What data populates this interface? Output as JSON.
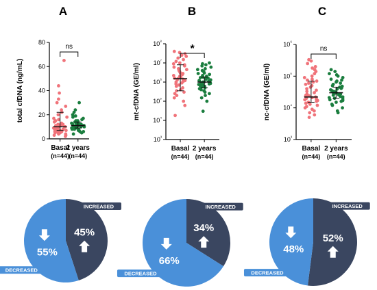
{
  "panels": [
    {
      "letter": "A",
      "ylabel": "total cfDNA  (ng/mL)",
      "sig": "ns"
    },
    {
      "letter": "B",
      "ylabel": "mt-cfDNA (GE/ml)",
      "sig": "*"
    },
    {
      "letter": "C",
      "ylabel": "nc-cfDNA (GE/ml)",
      "sig": "ns"
    }
  ],
  "groups": [
    {
      "label": "Basal",
      "n": "(n=44)"
    },
    {
      "label": "2 years",
      "n": "(n=44)"
    }
  ],
  "colors": {
    "basal": "#f0737a",
    "two_years": "#1a7d3e",
    "increased": "#3a4660",
    "decreased": "#4a90d9"
  },
  "chart_data": [
    {
      "type": "scatter",
      "title": "A",
      "ylabel": "total cfDNA  (ng/mL)",
      "categories": [
        "Basal\n(n=44)",
        "2 years\n(n=44)"
      ],
      "ylim": [
        0,
        80
      ],
      "yticks": [
        0,
        20,
        40,
        60,
        80
      ],
      "yscale": "linear",
      "series": [
        {
          "name": "Basal",
          "median": 10,
          "iqr": [
            7,
            22
          ],
          "values": [
            2,
            3,
            3,
            4,
            4,
            5,
            5,
            5,
            6,
            6,
            6,
            7,
            7,
            7,
            7,
            8,
            8,
            8,
            9,
            9,
            9,
            10,
            10,
            10,
            10,
            11,
            11,
            12,
            12,
            13,
            14,
            15,
            16,
            17,
            18,
            20,
            22,
            24,
            27,
            30,
            33,
            38,
            44,
            65
          ]
        },
        {
          "name": "2 years",
          "median": 11,
          "iqr": [
            9,
            14
          ],
          "values": [
            4,
            5,
            6,
            6,
            7,
            7,
            8,
            8,
            8,
            9,
            9,
            9,
            9,
            10,
            10,
            10,
            10,
            10,
            11,
            11,
            11,
            11,
            11,
            11,
            12,
            12,
            12,
            12,
            13,
            13,
            13,
            14,
            14,
            14,
            15,
            15,
            16,
            17,
            18,
            19,
            20,
            22,
            24,
            30
          ]
        }
      ],
      "annotation": "ns"
    },
    {
      "type": "scatter",
      "title": "B",
      "ylabel": "mt-cfDNA (GE/ml)",
      "categories": [
        "Basal\n(n=44)",
        "2 years\n(n=44)"
      ],
      "ylim": [
        1000,
        100000000
      ],
      "yticks": [
        "10^3",
        "10^4",
        "10^5",
        "10^6",
        "10^7",
        "10^8"
      ],
      "yscale": "log",
      "series": [
        {
          "name": "Basal",
          "median": 1500000,
          "iqr": [
            350000,
            8000000
          ],
          "values": [
            18000,
            60000,
            100000,
            150000,
            200000,
            250000,
            300000,
            350000,
            400000,
            500000,
            600000,
            700000,
            800000,
            900000,
            1000000,
            1100000,
            1200000,
            1300000,
            1400000,
            1500000,
            1600000,
            1800000,
            2000000,
            2200000,
            2500000,
            2800000,
            3000000,
            3500000,
            4000000,
            4500000,
            5000000,
            6000000,
            7000000,
            8000000,
            9000000,
            10000000,
            12000000,
            15000000,
            18000000,
            22000000,
            25000000,
            30000000,
            35000000,
            40000000
          ]
        },
        {
          "name": "2 years",
          "median": 1000000,
          "iqr": [
            500000,
            1800000
          ],
          "values": [
            30000,
            100000,
            150000,
            200000,
            250000,
            300000,
            350000,
            400000,
            450000,
            500000,
            550000,
            600000,
            650000,
            700000,
            750000,
            800000,
            850000,
            900000,
            950000,
            1000000,
            1000000,
            1100000,
            1150000,
            1200000,
            1300000,
            1400000,
            1500000,
            1600000,
            1700000,
            1800000,
            2000000,
            2200000,
            2500000,
            2800000,
            3000000,
            3500000,
            4000000,
            4500000,
            5000000,
            6000000,
            7000000,
            8000000,
            9000000,
            10000000
          ]
        }
      ],
      "annotation": "*"
    },
    {
      "type": "scatter",
      "title": "C",
      "ylabel": "nc-cfDNA (GE/ml)",
      "categories": [
        "Basal\n(n=44)",
        "2 years\n(n=44)"
      ],
      "ylim": [
        1000,
        1000000
      ],
      "yticks": [
        "10^3",
        "10^4",
        "10^5",
        "10^6"
      ],
      "yscale": "log",
      "series": [
        {
          "name": "Basal",
          "median": 22000,
          "iqr": [
            15000,
            70000
          ],
          "values": [
            5000,
            6000,
            7000,
            8000,
            9000,
            10000,
            11000,
            12000,
            13000,
            14000,
            15000,
            16000,
            17000,
            18000,
            19000,
            20000,
            21000,
            22000,
            23000,
            24000,
            25000,
            27000,
            30000,
            33000,
            36000,
            40000,
            45000,
            50000,
            55000,
            60000,
            65000,
            70000,
            75000,
            80000,
            90000,
            100000,
            120000,
            140000,
            160000,
            180000,
            200000,
            250000,
            300000,
            330000
          ]
        },
        {
          "name": "2 years",
          "median": 30000,
          "iqr": [
            20000,
            45000
          ],
          "values": [
            7000,
            8000,
            10000,
            12000,
            13000,
            15000,
            16000,
            17000,
            18000,
            19000,
            20000,
            21000,
            22000,
            23000,
            24000,
            25000,
            26000,
            27000,
            28000,
            29000,
            30000,
            31000,
            32000,
            33000,
            35000,
            37000,
            39000,
            41000,
            43000,
            45000,
            48000,
            50000,
            55000,
            60000,
            65000,
            70000,
            75000,
            80000,
            90000,
            100000,
            110000,
            120000,
            140000,
            160000
          ]
        }
      ],
      "annotation": "ns"
    },
    {
      "type": "pie",
      "slices": [
        {
          "label": "INCREASED",
          "value": 45,
          "text": "45%"
        },
        {
          "label": "DECREASED",
          "value": 55,
          "text": "55%"
        }
      ]
    },
    {
      "type": "pie",
      "slices": [
        {
          "label": "INCREASED",
          "value": 34,
          "text": "34%"
        },
        {
          "label": "DECREASED",
          "value": 66,
          "text": "66%"
        }
      ]
    },
    {
      "type": "pie",
      "slices": [
        {
          "label": "INCREASED",
          "value": 52,
          "text": "52%"
        },
        {
          "label": "DECREASED",
          "value": 48,
          "text": "48%"
        }
      ]
    }
  ]
}
